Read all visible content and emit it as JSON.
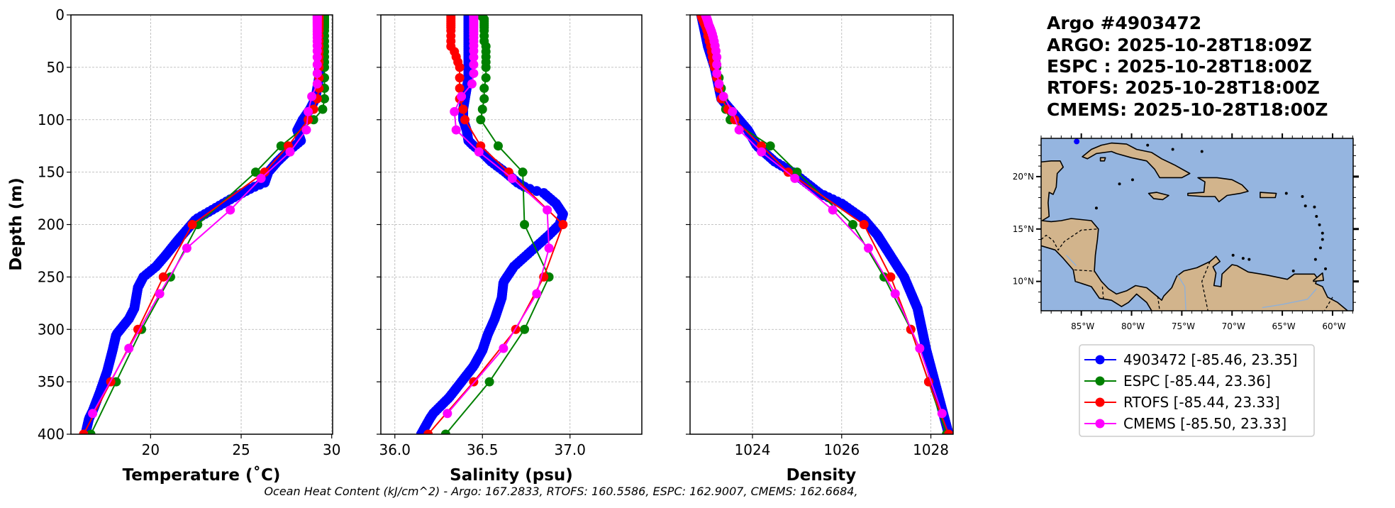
{
  "title_lines": [
    "Argo #4903472",
    "ARGO: 2025-10-28T18:09Z",
    "ESPC : 2025-10-28T18:00Z",
    "RTOFS: 2025-10-28T18:00Z",
    "CMEMS: 2025-10-28T18:00Z"
  ],
  "footer": "Ocean Heat Content (kJ/cm^2) - Argo: 167.2833,  RTOFS: 160.5586,  ESPC: 162.9007,  CMEMS: 162.6684,",
  "colors": {
    "argo": "#0000ff",
    "espc": "#008000",
    "rtofs": "#ff0000",
    "cmems": "#ff00ff",
    "ocean": "#95b5e0",
    "land": "#d2b48c",
    "grid": "#b0b0b0"
  },
  "legend": [
    {
      "label": "4903472 [-85.46, 23.35]",
      "color": "#0000ff"
    },
    {
      "label": "ESPC [-85.44, 23.36]",
      "color": "#008000"
    },
    {
      "label": "RTOFS [-85.44, 23.33]",
      "color": "#ff0000"
    },
    {
      "label": "CMEMS [-85.50, 23.33]",
      "color": "#ff00ff"
    }
  ],
  "chart_data": [
    {
      "type": "line",
      "title": "",
      "xlabel": "Temperature (˚C)",
      "ylabel": "Depth (m)",
      "xlim": [
        15.6,
        30.05
      ],
      "ylim": [
        400,
        0
      ],
      "grid": true,
      "xticks": [
        "20",
        "25",
        "30"
      ],
      "xtick_values": [
        20,
        25,
        30
      ],
      "yticks": [
        "0",
        "50",
        "100",
        "150",
        "200",
        "250",
        "300",
        "350",
        "400"
      ],
      "ytick_values": [
        0,
        50,
        100,
        150,
        200,
        250,
        300,
        350,
        400
      ],
      "series": [
        {
          "name": "4903472",
          "color": "#0000ff",
          "dense": true,
          "depth": [
            0,
            60,
            80,
            90,
            100,
            110,
            120,
            130,
            140,
            150,
            160,
            165,
            175,
            185,
            195,
            205,
            215,
            230,
            240,
            250,
            260,
            280,
            290,
            305,
            320,
            340,
            360,
            378,
            385,
            400
          ],
          "values": [
            29.3,
            29.3,
            29.1,
            28.8,
            28.4,
            28.1,
            28.3,
            27.6,
            27.0,
            26.5,
            26.3,
            25.6,
            24.5,
            23.5,
            22.5,
            22.0,
            21.5,
            20.8,
            20.3,
            19.6,
            19.3,
            19.1,
            18.8,
            18.1,
            17.9,
            17.6,
            17.2,
            16.8,
            16.6,
            16.4
          ]
        },
        {
          "name": "ESPC",
          "color": "#008000",
          "depth": [
            0,
            2,
            4,
            6,
            8,
            10,
            12,
            15,
            20,
            25,
            30,
            35,
            40,
            45,
            50,
            60,
            70,
            80,
            90,
            100,
            125,
            150,
            200,
            250,
            300,
            350,
            400
          ],
          "values": [
            29.6,
            29.6,
            29.6,
            29.6,
            29.6,
            29.6,
            29.6,
            29.6,
            29.6,
            29.6,
            29.6,
            29.6,
            29.6,
            29.6,
            29.6,
            29.6,
            29.6,
            29.6,
            29.5,
            29.0,
            27.2,
            25.8,
            22.6,
            21.1,
            19.5,
            18.1,
            16.7
          ]
        },
        {
          "name": "RTOFS",
          "color": "#ff0000",
          "depth": [
            0,
            2,
            4,
            6,
            8,
            10,
            12,
            15,
            20,
            25,
            30,
            35,
            40,
            45,
            50,
            60,
            70,
            80,
            90,
            100,
            125,
            150,
            200,
            250,
            300,
            350,
            400
          ],
          "values": [
            29.3,
            29.3,
            29.3,
            29.3,
            29.3,
            29.3,
            29.3,
            29.3,
            29.3,
            29.3,
            29.3,
            29.3,
            29.3,
            29.3,
            29.3,
            29.3,
            29.3,
            29.2,
            29.0,
            28.7,
            27.6,
            26.3,
            22.3,
            20.7,
            19.3,
            17.8,
            16.3
          ]
        },
        {
          "name": "CMEMS",
          "color": "#ff00ff",
          "depth": [
            0.5,
            1.5,
            2.6,
            3.8,
            5,
            6.4,
            7.9,
            9.6,
            11.4,
            13.5,
            15.8,
            18.5,
            21.6,
            25.2,
            29.4,
            34.4,
            40.3,
            47.4,
            55.8,
            65.8,
            77.8,
            92.3,
            109.7,
            130.7,
            155.9,
            186.1,
            222.5,
            266.0,
            318.1,
            380.2
          ],
          "values": [
            29.2,
            29.2,
            29.2,
            29.2,
            29.2,
            29.2,
            29.2,
            29.2,
            29.2,
            29.2,
            29.2,
            29.2,
            29.2,
            29.2,
            29.2,
            29.2,
            29.2,
            29.2,
            29.2,
            29.2,
            28.9,
            28.7,
            28.6,
            27.7,
            26.1,
            24.4,
            22.0,
            20.5,
            18.8,
            16.8
          ]
        }
      ]
    },
    {
      "type": "line",
      "title": "",
      "xlabel": "Salinity (psu)",
      "ylabel": "",
      "xlim": [
        35.92,
        37.41
      ],
      "ylim": [
        400,
        0
      ],
      "grid": true,
      "xticks": [
        "36.0",
        "36.5",
        "37.0"
      ],
      "xtick_values": [
        36.0,
        36.5,
        37.0
      ],
      "series": [
        {
          "name": "4903472",
          "color": "#0000ff",
          "dense": true,
          "depth": [
            0,
            60,
            70,
            80,
            90,
            100,
            110,
            120,
            125,
            130,
            140,
            150,
            160,
            165,
            170,
            180,
            190,
            200,
            210,
            225,
            240,
            255,
            270,
            290,
            305,
            320,
            335,
            350,
            365,
            380,
            385,
            400
          ],
          "values": [
            36.42,
            36.42,
            36.41,
            36.4,
            36.39,
            36.39,
            36.41,
            36.42,
            36.45,
            36.49,
            36.55,
            36.63,
            36.7,
            36.75,
            36.85,
            36.92,
            36.96,
            36.94,
            36.88,
            36.78,
            36.68,
            36.62,
            36.61,
            36.57,
            36.53,
            36.5,
            36.45,
            36.38,
            36.31,
            36.22,
            36.2,
            36.15
          ]
        },
        {
          "name": "ESPC",
          "color": "#008000",
          "depth": [
            0,
            2,
            4,
            6,
            8,
            10,
            12,
            15,
            20,
            25,
            30,
            35,
            40,
            45,
            50,
            60,
            70,
            80,
            90,
            100,
            125,
            150,
            200,
            250,
            300,
            350,
            400
          ],
          "values": [
            36.5,
            36.5,
            36.51,
            36.51,
            36.51,
            36.51,
            36.51,
            36.51,
            36.51,
            36.51,
            36.52,
            36.52,
            36.52,
            36.52,
            36.52,
            36.52,
            36.51,
            36.51,
            36.5,
            36.49,
            36.59,
            36.73,
            36.74,
            36.88,
            36.74,
            36.54,
            36.29
          ]
        },
        {
          "name": "RTOFS",
          "color": "#ff0000",
          "depth": [
            0,
            2,
            4,
            6,
            8,
            10,
            12,
            15,
            20,
            25,
            30,
            35,
            40,
            45,
            50,
            60,
            70,
            80,
            90,
            100,
            125,
            150,
            200,
            250,
            300,
            350,
            400
          ],
          "values": [
            36.32,
            36.32,
            36.32,
            36.32,
            36.32,
            36.32,
            36.32,
            36.32,
            36.32,
            36.32,
            36.32,
            36.34,
            36.35,
            36.36,
            36.37,
            36.37,
            36.37,
            36.37,
            36.39,
            36.4,
            36.49,
            36.65,
            36.96,
            36.85,
            36.69,
            36.45,
            36.19
          ]
        },
        {
          "name": "CMEMS",
          "color": "#ff00ff",
          "depth": [
            0.5,
            1.5,
            2.6,
            3.8,
            5,
            6.4,
            7.9,
            9.6,
            11.4,
            13.5,
            15.8,
            18.5,
            21.6,
            25.2,
            29.4,
            34.4,
            40.3,
            47.4,
            55.8,
            65.8,
            77.8,
            92.3,
            109.7,
            130.7,
            155.9,
            186.1,
            222.5,
            266.0,
            318.1,
            380.2
          ],
          "values": [
            36.45,
            36.45,
            36.45,
            36.45,
            36.45,
            36.45,
            36.45,
            36.45,
            36.45,
            36.45,
            36.45,
            36.45,
            36.45,
            36.45,
            36.45,
            36.45,
            36.45,
            36.45,
            36.45,
            36.44,
            36.38,
            36.34,
            36.35,
            36.48,
            36.67,
            36.87,
            36.88,
            36.81,
            36.62,
            36.3
          ]
        }
      ]
    },
    {
      "type": "line",
      "title": "",
      "xlabel": "Density",
      "ylabel": "",
      "xlim": [
        1022.6,
        1028.5
      ],
      "ylim": [
        400,
        0
      ],
      "grid": true,
      "xticks": [
        "1024",
        "1026",
        "1028"
      ],
      "xtick_values": [
        1024,
        1026,
        1028
      ],
      "series": [
        {
          "name": "4903472",
          "color": "#0000ff",
          "dense": true,
          "depth": [
            0,
            30,
            50,
            80,
            90,
            100,
            110,
            125,
            140,
            150,
            170,
            180,
            195,
            210,
            230,
            250,
            280,
            320,
            360,
            400
          ],
          "values": [
            1022.85,
            1023.0,
            1023.15,
            1023.3,
            1023.5,
            1023.7,
            1023.9,
            1024.1,
            1024.5,
            1024.9,
            1025.5,
            1026.0,
            1026.5,
            1026.8,
            1027.1,
            1027.4,
            1027.7,
            1027.9,
            1028.15,
            1028.4
          ]
        },
        {
          "name": "ESPC",
          "color": "#008000",
          "depth": [
            0,
            2,
            4,
            6,
            8,
            10,
            12,
            15,
            20,
            25,
            30,
            35,
            40,
            45,
            50,
            60,
            70,
            80,
            90,
            100,
            125,
            150,
            200,
            250,
            300,
            350,
            400
          ],
          "values": [
            1022.9,
            1022.9,
            1022.92,
            1022.94,
            1022.96,
            1022.98,
            1023.0,
            1023.02,
            1023.05,
            1023.08,
            1023.1,
            1023.13,
            1023.15,
            1023.18,
            1023.2,
            1023.25,
            1023.3,
            1023.35,
            1023.4,
            1023.5,
            1024.4,
            1025.0,
            1026.25,
            1026.95,
            1027.55,
            1027.95,
            1028.35
          ]
        },
        {
          "name": "RTOFS",
          "color": "#ff0000",
          "depth": [
            0,
            2,
            4,
            6,
            8,
            10,
            12,
            15,
            20,
            25,
            30,
            35,
            40,
            45,
            50,
            60,
            70,
            80,
            90,
            100,
            125,
            150,
            200,
            250,
            300,
            350,
            400
          ],
          "values": [
            1022.85,
            1022.86,
            1022.88,
            1022.9,
            1022.92,
            1022.94,
            1022.96,
            1022.98,
            1023.0,
            1023.03,
            1023.06,
            1023.08,
            1023.1,
            1023.12,
            1023.15,
            1023.2,
            1023.25,
            1023.3,
            1023.45,
            1023.6,
            1024.2,
            1024.8,
            1026.5,
            1027.1,
            1027.55,
            1027.95,
            1028.4
          ]
        },
        {
          "name": "CMEMS",
          "color": "#ff00ff",
          "depth": [
            0.5,
            1.5,
            2.6,
            3.8,
            5,
            6.4,
            7.9,
            9.6,
            11.4,
            13.5,
            15.8,
            18.5,
            21.6,
            25.2,
            29.4,
            34.4,
            40.3,
            47.4,
            55.8,
            65.8,
            77.8,
            92.3,
            109.7,
            130.7,
            155.9,
            186.1,
            222.5,
            266.0,
            318.1,
            380.2
          ],
          "values": [
            1022.95,
            1022.96,
            1022.97,
            1022.98,
            1022.99,
            1023.0,
            1023.01,
            1023.02,
            1023.04,
            1023.06,
            1023.08,
            1023.1,
            1023.12,
            1023.14,
            1023.16,
            1023.18,
            1023.2,
            1023.2,
            1023.2,
            1023.25,
            1023.35,
            1023.55,
            1023.7,
            1024.2,
            1024.95,
            1025.8,
            1026.6,
            1027.2,
            1027.75,
            1028.25
          ]
        }
      ]
    },
    {
      "type": "map",
      "lon_range": [
        -89.0,
        -57.95
      ],
      "lat_range": [
        7.2,
        23.65
      ],
      "lat_ticks": [
        "10°N",
        "15°N",
        "20°N"
      ],
      "lat_tick_values": [
        10,
        15,
        20
      ],
      "lon_ticks": [
        "85°W",
        "80°W",
        "75°W",
        "70°W",
        "65°W",
        "60°W"
      ],
      "lon_tick_values": [
        -85,
        -80,
        -75,
        -70,
        -65,
        -60
      ],
      "float_position": [
        -85.46,
        23.35
      ]
    }
  ]
}
